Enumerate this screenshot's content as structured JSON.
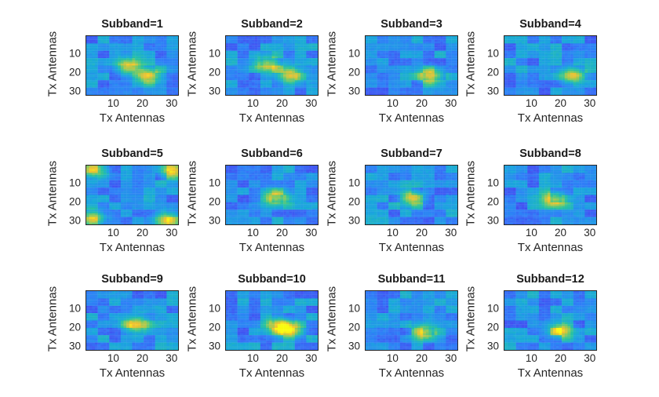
{
  "chart_data": [
    {
      "type": "heatmap",
      "title": "Subband=1",
      "xlabel": "Tx Antennas",
      "ylabel": "Tx Antennas",
      "xticks": [
        "10",
        "20",
        "30"
      ],
      "yticks": [
        "10",
        "20",
        "30"
      ],
      "xlim": [
        0.5,
        32.5
      ],
      "ylim": [
        0.5,
        32.5
      ],
      "colormap": "parula",
      "peaks": [
        [
          15,
          17
        ],
        [
          22,
          22
        ]
      ]
    },
    {
      "type": "heatmap",
      "title": "Subband=2",
      "xlabel": "Tx Antennas",
      "ylabel": "Tx Antennas",
      "xticks": [
        "10",
        "20",
        "30"
      ],
      "yticks": [
        "10",
        "20",
        "30"
      ],
      "xlim": [
        0.5,
        32.5
      ],
      "ylim": [
        0.5,
        32.5
      ],
      "colormap": "parula",
      "peaks": [
        [
          23,
          22
        ],
        [
          15,
          16
        ]
      ]
    },
    {
      "type": "heatmap",
      "title": "Subband=3",
      "xlabel": "Tx Antennas",
      "ylabel": "Tx Antennas",
      "xticks": [
        "10",
        "20",
        "30"
      ],
      "yticks": [
        "10",
        "20",
        "30"
      ],
      "xlim": [
        0.5,
        32.5
      ],
      "ylim": [
        0.5,
        32.5
      ],
      "colormap": "parula",
      "peaks": [
        [
          23,
          22
        ]
      ]
    },
    {
      "type": "heatmap",
      "title": "Subband=4",
      "xlabel": "Tx Antennas",
      "ylabel": "Tx Antennas",
      "xticks": [
        "10",
        "20",
        "30"
      ],
      "yticks": [
        "10",
        "20",
        "30"
      ],
      "xlim": [
        0.5,
        32.5
      ],
      "ylim": [
        0.5,
        32.5
      ],
      "colormap": "parula",
      "peaks": [
        [
          24,
          22
        ]
      ]
    },
    {
      "type": "heatmap",
      "title": "Subband=5",
      "xlabel": "Tx Antennas",
      "ylabel": "Tx Antennas",
      "xticks": [
        "10",
        "20",
        "30"
      ],
      "yticks": [
        "10",
        "20",
        "30"
      ],
      "xlim": [
        0.5,
        32.5
      ],
      "ylim": [
        0.5,
        32.5
      ],
      "colormap": "parula",
      "peaks": [
        [
          3,
          3
        ],
        [
          29,
          30
        ],
        [
          30,
          3
        ],
        [
          3,
          29
        ]
      ]
    },
    {
      "type": "heatmap",
      "title": "Subband=6",
      "xlabel": "Tx Antennas",
      "ylabel": "Tx Antennas",
      "xticks": [
        "10",
        "20",
        "30"
      ],
      "yticks": [
        "10",
        "20",
        "30"
      ],
      "xlim": [
        0.5,
        32.5
      ],
      "ylim": [
        0.5,
        32.5
      ],
      "colormap": "parula",
      "peaks": [
        [
          18,
          18
        ]
      ]
    },
    {
      "type": "heatmap",
      "title": "Subband=7",
      "xlabel": "Tx Antennas",
      "ylabel": "Tx Antennas",
      "xticks": [
        "10",
        "20",
        "30"
      ],
      "yticks": [
        "10",
        "20",
        "30"
      ],
      "xlim": [
        0.5,
        32.5
      ],
      "ylim": [
        0.5,
        32.5
      ],
      "colormap": "parula",
      "peaks": [
        [
          17,
          18
        ]
      ]
    },
    {
      "type": "heatmap",
      "title": "Subband=8",
      "xlabel": "Tx Antennas",
      "ylabel": "Tx Antennas",
      "xticks": [
        "10",
        "20",
        "30"
      ],
      "yticks": [
        "10",
        "20",
        "30"
      ],
      "xlim": [
        0.5,
        32.5
      ],
      "ylim": [
        0.5,
        32.5
      ],
      "colormap": "parula",
      "peaks": [
        [
          18,
          19
        ]
      ]
    },
    {
      "type": "heatmap",
      "title": "Subband=9",
      "xlabel": "Tx Antennas",
      "ylabel": "Tx Antennas",
      "xticks": [
        "10",
        "20",
        "30"
      ],
      "yticks": [
        "10",
        "20",
        "30"
      ],
      "xlim": [
        0.5,
        32.5
      ],
      "ylim": [
        0.5,
        32.5
      ],
      "colormap": "parula",
      "peaks": [
        [
          18,
          19
        ]
      ]
    },
    {
      "type": "heatmap",
      "title": "Subband=10",
      "xlabel": "Tx Antennas",
      "ylabel": "Tx Antennas",
      "xticks": [
        "10",
        "20",
        "30"
      ],
      "yticks": [
        "10",
        "20",
        "30"
      ],
      "xlim": [
        0.5,
        32.5
      ],
      "ylim": [
        0.5,
        32.5
      ],
      "colormap": "parula",
      "peaks": [
        [
          19,
          19
        ],
        [
          23,
          22
        ]
      ]
    },
    {
      "type": "heatmap",
      "title": "Subband=11",
      "xlabel": "Tx Antennas",
      "ylabel": "Tx Antennas",
      "xticks": [
        "10",
        "20",
        "30"
      ],
      "yticks": [
        "10",
        "20",
        "30"
      ],
      "xlim": [
        0.5,
        32.5
      ],
      "ylim": [
        0.5,
        32.5
      ],
      "colormap": "parula",
      "peaks": [
        [
          21,
          23
        ]
      ]
    },
    {
      "type": "heatmap",
      "title": "Subband=12",
      "xlabel": "Tx Antennas",
      "ylabel": "Tx Antennas",
      "xticks": [
        "10",
        "20",
        "30"
      ],
      "yticks": [
        "10",
        "20",
        "30"
      ],
      "xlim": [
        0.5,
        32.5
      ],
      "ylim": [
        0.5,
        32.5
      ],
      "colormap": "parula",
      "peaks": [
        [
          20,
          22
        ]
      ]
    }
  ]
}
